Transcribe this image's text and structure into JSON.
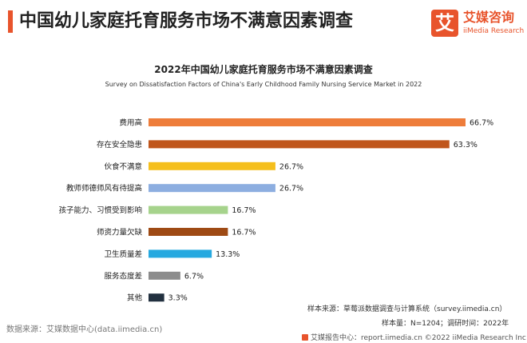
{
  "page": {
    "title": "中国幼儿家庭托育服务市场不满意因素调查"
  },
  "logo": {
    "glyph": "艾",
    "name_cn": "艾媒咨询",
    "name_en": "iiMedia Research"
  },
  "chart_data": {
    "type": "bar",
    "orientation": "horizontal",
    "title": "2022年中国幼儿家庭托育服务市场不满意因素调查",
    "subtitle": "Survey on Dissatisfaction Factors of China's Early Childhood Family Nursing Service Market in 2022",
    "categories": [
      "费用高",
      "存在安全隐患",
      "伙食不满意",
      "教师师德师风有待提高",
      "孩子能力、习惯受到影响",
      "师资力量欠缺",
      "卫生质量差",
      "服务态度差",
      "其他"
    ],
    "values": [
      66.7,
      63.3,
      26.7,
      26.7,
      16.7,
      16.7,
      13.3,
      6.7,
      3.3
    ],
    "value_labels": [
      "66.7%",
      "63.3%",
      "26.7%",
      "26.7%",
      "16.7%",
      "16.7%",
      "13.3%",
      "6.7%",
      "3.3%"
    ],
    "colors": [
      "#ee7d3b",
      "#c0561c",
      "#f5bf1d",
      "#8daee0",
      "#a6d38c",
      "#9e4a14",
      "#26a9e0",
      "#8c8c8c",
      "#22303f"
    ],
    "xlim": [
      0,
      66.7
    ],
    "grid": false,
    "legend": "none"
  },
  "footer": {
    "source_note": "样本来源：草莓派数据调查与计算系统（survey.iimedia.cn）",
    "sample_note": "样本量：N=1204；调研时间：2022年",
    "data_source": "数据来源：艾媒数据中心(data.iimedia.cn)",
    "bottom_line": "艾媒报告中心：report.iimedia.cn  ©2022  iiMedia Research  Inc"
  }
}
